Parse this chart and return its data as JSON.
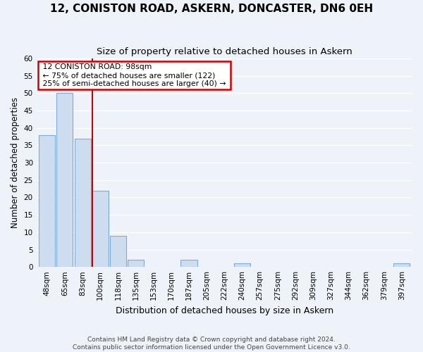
{
  "title": "12, CONISTON ROAD, ASKERN, DONCASTER, DN6 0EH",
  "subtitle": "Size of property relative to detached houses in Askern",
  "xlabel": "Distribution of detached houses by size in Askern",
  "ylabel": "Number of detached properties",
  "categories": [
    "48sqm",
    "65sqm",
    "83sqm",
    "100sqm",
    "118sqm",
    "135sqm",
    "153sqm",
    "170sqm",
    "187sqm",
    "205sqm",
    "222sqm",
    "240sqm",
    "257sqm",
    "275sqm",
    "292sqm",
    "309sqm",
    "327sqm",
    "344sqm",
    "362sqm",
    "379sqm",
    "397sqm"
  ],
  "values": [
    38,
    50,
    37,
    22,
    9,
    2,
    0,
    0,
    2,
    0,
    0,
    1,
    0,
    0,
    0,
    0,
    0,
    0,
    0,
    0,
    1
  ],
  "bar_color": "#cddcee",
  "bar_edge_color": "#7baed6",
  "annotation_label": "12 CONISTON ROAD: 98sqm",
  "annotation_line1": "← 75% of detached houses are smaller (122)",
  "annotation_line2": "25% of semi-detached houses are larger (40) →",
  "annotation_box_facecolor": "#ffffff",
  "annotation_box_edgecolor": "#cc0000",
  "property_line_color": "#cc0000",
  "property_line_index": 3,
  "ylim": [
    0,
    60
  ],
  "yticks": [
    0,
    5,
    10,
    15,
    20,
    25,
    30,
    35,
    40,
    45,
    50,
    55,
    60
  ],
  "footer_line1": "Contains HM Land Registry data © Crown copyright and database right 2024.",
  "footer_line2": "Contains public sector information licensed under the Open Government Licence v3.0.",
  "bg_color": "#eef2f9",
  "grid_color": "#ffffff",
  "title_fontsize": 11,
  "subtitle_fontsize": 9.5,
  "axis_label_fontsize": 9,
  "tick_fontsize": 7.5,
  "ylabel_fontsize": 8.5
}
